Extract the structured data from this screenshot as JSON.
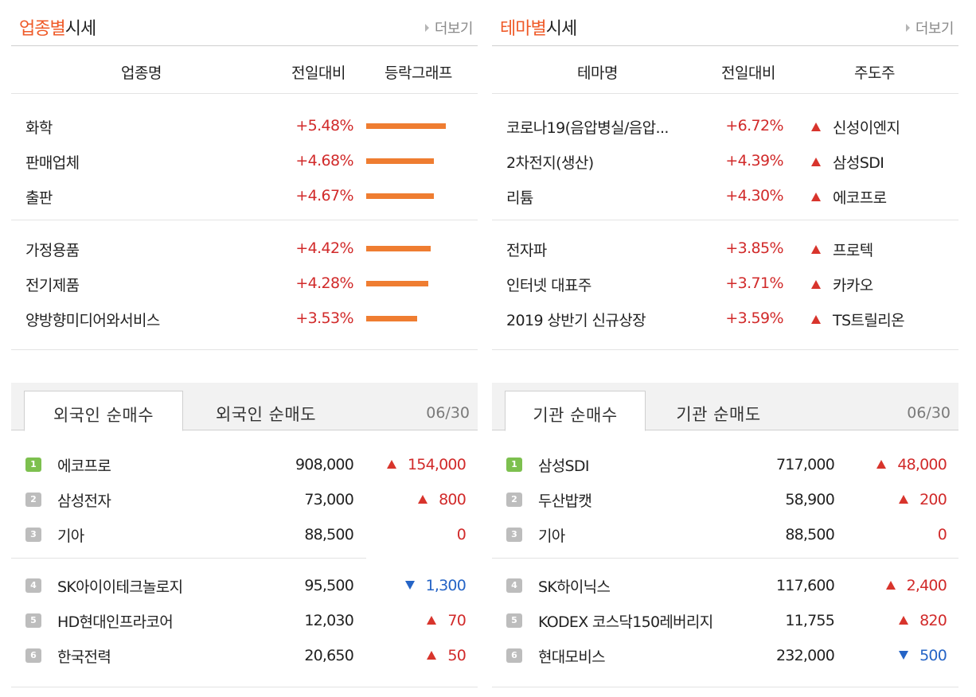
{
  "sectors": {
    "title_accent": "업종별",
    "title_rest": "시세",
    "more_label": "더보기",
    "columns": {
      "name": "업종명",
      "change": "전일대비",
      "graph": "등락그래프"
    },
    "rows": [
      {
        "name": "화학",
        "change": "+5.48%",
        "change_value": 5.48
      },
      {
        "name": "판매업체",
        "change": "+4.68%",
        "change_value": 4.68
      },
      {
        "name": "출판",
        "change": "+4.67%",
        "change_value": 4.67
      },
      {
        "name": "가정용품",
        "change": "+4.42%",
        "change_value": 4.42
      },
      {
        "name": "전기제품",
        "change": "+4.28%",
        "change_value": 4.28
      },
      {
        "name": "양방향미디어와서비스",
        "change": "+3.53%",
        "change_value": 3.53
      }
    ]
  },
  "themes": {
    "title_accent": "테마별",
    "title_rest": "시세",
    "more_label": "더보기",
    "columns": {
      "name": "테마명",
      "change": "전일대비",
      "leader": "주도주"
    },
    "rows": [
      {
        "name": "코로나19(음압병실/음압...",
        "change": "+6.72%",
        "leader": "신성이엔지"
      },
      {
        "name": "2차전지(생산)",
        "change": "+4.39%",
        "leader": "삼성SDI"
      },
      {
        "name": "리튬",
        "change": "+4.30%",
        "leader": "에코프로"
      },
      {
        "name": "전자파",
        "change": "+3.85%",
        "leader": "프로텍"
      },
      {
        "name": "인터넷 대표주",
        "change": "+3.71%",
        "leader": "카카오"
      },
      {
        "name": "2019 상반기 신규상장",
        "change": "+3.59%",
        "leader": "TS트릴리온"
      }
    ]
  },
  "foreign": {
    "tabs": [
      "외국인 순매수",
      "외국인 순매도"
    ],
    "date": "06/30",
    "rows": [
      {
        "rank": "1",
        "name": "에코프로",
        "volume": "908,000",
        "change": "154,000",
        "dir": "up"
      },
      {
        "rank": "2",
        "name": "삼성전자",
        "volume": "73,000",
        "change": "800",
        "dir": "up"
      },
      {
        "rank": "3",
        "name": "기아",
        "volume": "88,500",
        "change": "0",
        "dir": "flat"
      },
      {
        "rank": "4",
        "name": "SK아이이테크놀로지",
        "volume": "95,500",
        "change": "1,300",
        "dir": "down"
      },
      {
        "rank": "5",
        "name": "HD현대인프라코어",
        "volume": "12,030",
        "change": "70",
        "dir": "up"
      },
      {
        "rank": "6",
        "name": "한국전력",
        "volume": "20,650",
        "change": "50",
        "dir": "up"
      }
    ]
  },
  "institution": {
    "tabs": [
      "기관 순매수",
      "기관 순매도"
    ],
    "date": "06/30",
    "rows": [
      {
        "rank": "1",
        "name": "삼성SDI",
        "volume": "717,000",
        "change": "48,000",
        "dir": "up"
      },
      {
        "rank": "2",
        "name": "두산밥캣",
        "volume": "58,900",
        "change": "200",
        "dir": "up"
      },
      {
        "rank": "3",
        "name": "기아",
        "volume": "88,500",
        "change": "0",
        "dir": "flat"
      },
      {
        "rank": "4",
        "name": "SK하이닉스",
        "volume": "117,600",
        "change": "2,400",
        "dir": "up"
      },
      {
        "rank": "5",
        "name": "KODEX 코스닥150레버리지",
        "volume": "11,755",
        "change": "820",
        "dir": "up"
      },
      {
        "rank": "6",
        "name": "현대모비스",
        "volume": "232,000",
        "change": "500",
        "dir": "down"
      }
    ]
  },
  "colors": {
    "accent": "#ef5a28",
    "bar": "#ef7d31",
    "up": "#d12a2a",
    "down": "#2564c6",
    "rank_first": "#7dc04f",
    "rank": "#bdbdbd"
  }
}
